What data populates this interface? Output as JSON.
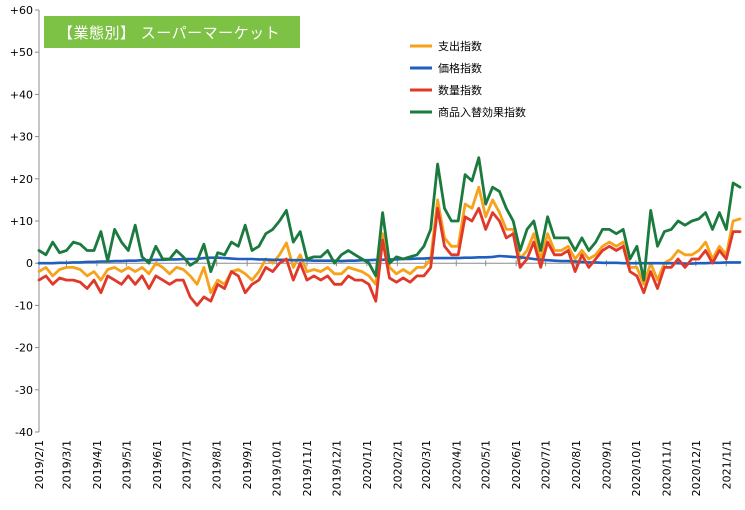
{
  "badge": "【業態別】 スーパーマーケット",
  "chart_data": {
    "type": "line",
    "title": "",
    "xlabel": "",
    "ylabel": "",
    "ylim": [
      -40,
      60
    ],
    "y_ticks": [
      -40,
      -30,
      -20,
      -10,
      0,
      10,
      20,
      30,
      40,
      50,
      60
    ],
    "y_tick_labels": [
      "-40",
      "-30",
      "-20",
      "-10",
      "0",
      "+10",
      "+20",
      "+30",
      "+40",
      "+50",
      "+60"
    ],
    "x_ticks": [
      "2019-02-01",
      "2019-03-01",
      "2019-04-01",
      "2019-05-01",
      "2019-06-01",
      "2019-07-01",
      "2019-08-01",
      "2019-09-01",
      "2019-10-01",
      "2019-11-01",
      "2019-12-01",
      "2020-01-01",
      "2020-02-01",
      "2020-03-01",
      "2020-04-01",
      "2020-05-01",
      "2020-06-01",
      "2020-07-01",
      "2020-08-01",
      "2020-09-01",
      "2020-10-01",
      "2020-11-01",
      "2020-12-01",
      "2021-01-01"
    ],
    "x_tick_labels": [
      "2019/2/1",
      "2019/3/1",
      "2019/4/1",
      "2019/5/1",
      "2019/6/1",
      "2019/7/1",
      "2019/8/1",
      "2019/9/1",
      "2019/10/1",
      "2019/11/1",
      "2019/12/1",
      "2020/1/1",
      "2020/2/1",
      "2020/3/1",
      "2020/4/1",
      "2020/5/1",
      "2020/6/1",
      "2020/7/1",
      "2020/8/1",
      "2020/9/1",
      "2020/10/1",
      "2020/11/1",
      "2020/12/1",
      "2021/1/1"
    ],
    "x": [
      "2019-02-01",
      "2019-02-08",
      "2019-02-15",
      "2019-02-22",
      "2019-03-01",
      "2019-03-08",
      "2019-03-15",
      "2019-03-22",
      "2019-03-29",
      "2019-04-05",
      "2019-04-12",
      "2019-04-19",
      "2019-04-26",
      "2019-05-03",
      "2019-05-10",
      "2019-05-17",
      "2019-05-24",
      "2019-05-31",
      "2019-06-07",
      "2019-06-14",
      "2019-06-21",
      "2019-06-28",
      "2019-07-05",
      "2019-07-12",
      "2019-07-19",
      "2019-07-26",
      "2019-08-02",
      "2019-08-09",
      "2019-08-16",
      "2019-08-23",
      "2019-08-30",
      "2019-09-06",
      "2019-09-13",
      "2019-09-20",
      "2019-09-27",
      "2019-10-04",
      "2019-10-11",
      "2019-10-18",
      "2019-10-25",
      "2019-11-01",
      "2019-11-08",
      "2019-11-15",
      "2019-11-22",
      "2019-11-29",
      "2019-12-06",
      "2019-12-13",
      "2019-12-20",
      "2019-12-27",
      "2020-01-03",
      "2020-01-10",
      "2020-01-17",
      "2020-01-24",
      "2020-01-31",
      "2020-02-07",
      "2020-02-14",
      "2020-02-21",
      "2020-02-28",
      "2020-03-06",
      "2020-03-13",
      "2020-03-20",
      "2020-03-27",
      "2020-04-03",
      "2020-04-10",
      "2020-04-17",
      "2020-04-24",
      "2020-05-01",
      "2020-05-08",
      "2020-05-15",
      "2020-05-22",
      "2020-05-29",
      "2020-06-05",
      "2020-06-12",
      "2020-06-19",
      "2020-06-26",
      "2020-07-03",
      "2020-07-10",
      "2020-07-17",
      "2020-07-24",
      "2020-07-31",
      "2020-08-07",
      "2020-08-14",
      "2020-08-21",
      "2020-08-28",
      "2020-09-04",
      "2020-09-11",
      "2020-09-18",
      "2020-09-25",
      "2020-10-02",
      "2020-10-09",
      "2020-10-16",
      "2020-10-23",
      "2020-10-30",
      "2020-11-06",
      "2020-11-13",
      "2020-11-20",
      "2020-11-27",
      "2020-12-04",
      "2020-12-11",
      "2020-12-18",
      "2020-12-25",
      "2021-01-01",
      "2021-01-08",
      "2021-01-15"
    ],
    "series": [
      {
        "name": "支出指数",
        "color": "#f7a21b",
        "values": [
          -2,
          -1,
          -3,
          -1.5,
          -1,
          -1,
          -1.5,
          -3,
          -2,
          -4,
          -1.5,
          -1,
          -2,
          -1,
          -2,
          -1,
          -2.5,
          0,
          -1,
          -2.5,
          -1,
          -1.5,
          -3,
          -5,
          -1,
          -7,
          -4,
          -5,
          -2,
          -1.5,
          -2.5,
          -4,
          -2,
          1,
          0,
          2,
          4.8,
          -1,
          2,
          -2,
          -1.5,
          -2,
          -1,
          -2.5,
          -2.5,
          -1,
          -1.5,
          -2,
          -3,
          -5,
          7,
          -1,
          -2.5,
          -1.5,
          -2.5,
          -1,
          -1,
          1,
          15,
          6,
          4,
          4,
          14,
          13,
          18,
          11,
          15,
          12,
          8,
          8,
          1,
          3,
          7,
          1,
          7,
          3,
          3,
          4,
          1,
          3,
          1,
          2,
          4,
          5,
          4,
          5,
          -1,
          -1,
          -5,
          0,
          -4,
          0,
          1,
          3,
          2,
          2,
          3,
          5,
          1,
          4,
          2,
          10,
          10.5
        ]
      },
      {
        "name": "価格指数",
        "color": "#1f5fbf",
        "values": [
          0,
          0,
          0,
          0.1,
          0.1,
          0.2,
          0.2,
          0.3,
          0.3,
          0.4,
          0.4,
          0.5,
          0.5,
          0.6,
          0.6,
          0.7,
          0.7,
          0.8,
          0.8,
          0.9,
          0.9,
          1,
          1,
          1,
          1.2,
          1.3,
          1.3,
          1.2,
          1.1,
          1,
          1,
          1,
          0.9,
          0.9,
          0.8,
          0.8,
          0.8,
          0.7,
          0.7,
          0.7,
          0.6,
          0.6,
          0.6,
          0.6,
          0.5,
          0.6,
          0.6,
          0.7,
          0.7,
          0.8,
          0.8,
          0.9,
          0.9,
          1,
          1,
          1.1,
          1.1,
          1.2,
          1.2,
          1.2,
          1.2,
          1.2,
          1.3,
          1.3,
          1.4,
          1.4,
          1.5,
          1.7,
          1.6,
          1.5,
          1.4,
          1.2,
          1,
          0.8,
          0.7,
          0.6,
          0.5,
          0.5,
          0.4,
          0.3,
          0.2,
          0.2,
          0.1,
          0.1,
          0.1,
          0,
          0,
          0,
          0,
          0,
          0,
          0,
          0,
          0,
          -0.1,
          -0.1,
          0,
          0,
          0.1,
          0.1,
          0.2,
          0.2,
          0.2
        ]
      },
      {
        "name": "数量指数",
        "color": "#e0392a",
        "values": [
          -4,
          -3,
          -5,
          -3.5,
          -4,
          -4,
          -4.5,
          -6,
          -4,
          -7,
          -3,
          -4,
          -5,
          -3,
          -5,
          -3,
          -6,
          -3,
          -4,
          -5,
          -4,
          -4,
          -8,
          -10,
          -8,
          -9,
          -5,
          -6,
          -2,
          -3,
          -7,
          -5,
          -4,
          -1,
          -2,
          0,
          1,
          -4,
          0,
          -4,
          -3,
          -4,
          -3,
          -5,
          -5,
          -3,
          -4,
          -4,
          -5,
          -9,
          5.5,
          -3.5,
          -4.5,
          -3.5,
          -4.5,
          -3,
          -3,
          -1,
          13,
          4,
          2,
          2,
          11,
          10,
          13,
          8,
          12,
          10,
          6,
          7,
          -1,
          1,
          5,
          -1,
          5,
          2,
          2,
          3,
          -2,
          2,
          -1,
          1,
          3,
          4,
          3,
          4,
          -2,
          -3,
          -7,
          -2,
          -6,
          -1,
          -1,
          1,
          -1,
          1,
          1,
          3,
          0,
          3,
          1,
          7.5,
          7.5
        ]
      },
      {
        "name": "商品入替効果指数",
        "color": "#1b7a3e",
        "values": [
          3,
          2,
          5,
          2.5,
          3,
          5,
          4.5,
          3,
          3,
          7.5,
          0.5,
          8,
          5,
          3,
          9,
          1.5,
          0,
          4,
          1,
          1,
          3,
          1.5,
          -0.5,
          0.5,
          4.5,
          -2,
          2.5,
          2,
          5,
          4,
          9,
          3,
          4,
          7,
          8,
          10,
          12.5,
          5,
          7.5,
          1,
          1.5,
          1.5,
          3,
          0,
          2,
          3,
          2,
          1,
          0,
          -3,
          12,
          0,
          1.5,
          1,
          1.5,
          2,
          4,
          8,
          23.5,
          13,
          10,
          10,
          21,
          19.5,
          25,
          14,
          18,
          17,
          13,
          10,
          3,
          8,
          10,
          3,
          11,
          6,
          6,
          6,
          3,
          6,
          3,
          5,
          8,
          8,
          7,
          8,
          1,
          4,
          -4,
          12.5,
          4,
          7.5,
          8,
          10,
          9,
          10,
          10.5,
          12,
          8,
          12,
          8,
          19,
          18
        ]
      }
    ],
    "legend_position": "top-center",
    "grid": false
  }
}
